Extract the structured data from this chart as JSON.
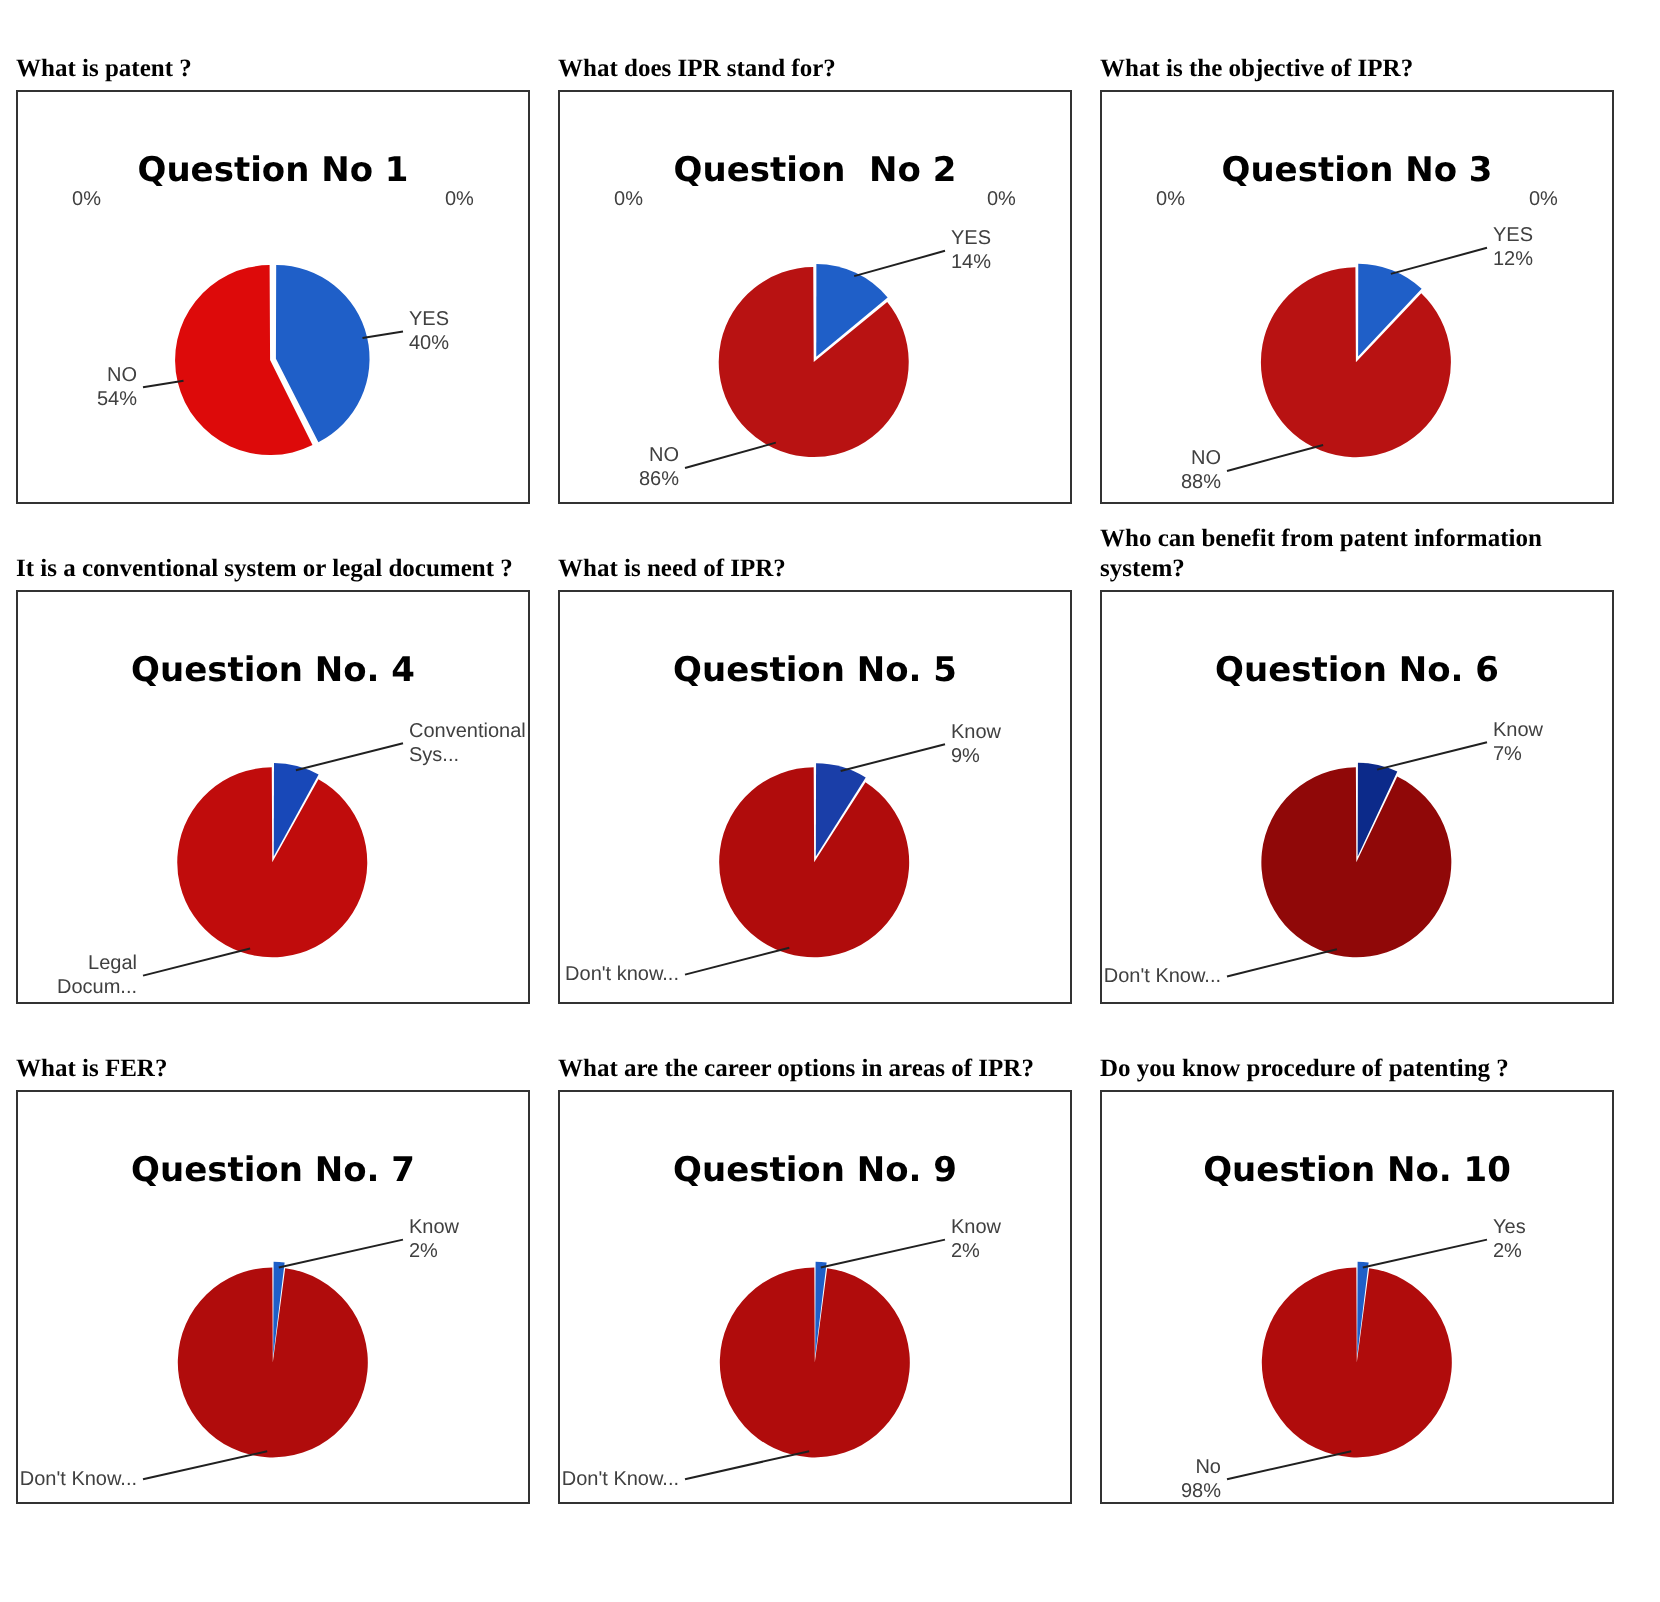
{
  "chart_data": [
    {
      "type": "pie",
      "title": "What is patent ?",
      "subtitle": "Question No 1",
      "categories": [
        null,
        "YES",
        "NO",
        null
      ],
      "values": [
        0,
        40,
        54,
        0
      ],
      "colors": [
        "#7f7f7f",
        "#1f5fc8",
        "#dd0a0a",
        "#7f7f7f"
      ],
      "value_labels": [
        "0%",
        "40%",
        "54%",
        "0%"
      ]
    },
    {
      "type": "pie",
      "title": "What does IPR stand for?",
      "subtitle": "Question  No 2",
      "categories": [
        null,
        "YES",
        "NO",
        null
      ],
      "values": [
        0,
        14,
        86,
        0
      ],
      "colors": [
        "#7f7f7f",
        "#1f5fc8",
        "#b81212",
        "#7f7f7f"
      ],
      "value_labels": [
        "0%",
        "14%",
        "86%",
        "0%"
      ]
    },
    {
      "type": "pie",
      "title": "What is the objective of IPR?",
      "subtitle": "Question No 3",
      "categories": [
        null,
        "YES",
        "NO",
        null
      ],
      "values": [
        0,
        12,
        88,
        0
      ],
      "colors": [
        "#7f7f7f",
        "#1f5fc8",
        "#b81212",
        "#7f7f7f"
      ],
      "value_labels": [
        "0%",
        "12%",
        "88%",
        "0%"
      ]
    },
    {
      "type": "pie",
      "title": "It is a conventional system or legal document ?",
      "subtitle": "Question No. 4",
      "categories": [
        "Conventional Sys...",
        "Legal Docum..."
      ],
      "values": [
        8,
        92
      ],
      "colors": [
        "#1848b8",
        "#c00c0c"
      ],
      "value_labels": [
        null,
        null
      ]
    },
    {
      "type": "pie",
      "title": "What is need of IPR?",
      "subtitle": "Question No. 5",
      "categories": [
        "Know",
        "Don't know..."
      ],
      "values": [
        9,
        91
      ],
      "colors": [
        "#1a3ea8",
        "#b00c0c"
      ],
      "value_labels": [
        "9%",
        null
      ]
    },
    {
      "type": "pie",
      "title": "Who can benefit from patent information system?",
      "subtitle": "Question No. 6",
      "categories": [
        "Know",
        "Don't Know..."
      ],
      "values": [
        7,
        93
      ],
      "colors": [
        "#0c2a8a",
        "#900808"
      ],
      "value_labels": [
        "7%",
        null
      ]
    },
    {
      "type": "pie",
      "title": "What is FER?",
      "subtitle": "Question No. 7",
      "categories": [
        "Know",
        "Don't Know..."
      ],
      "values": [
        2,
        98
      ],
      "colors": [
        "#1f5fc8",
        "#b00c0c"
      ],
      "value_labels": [
        "2%",
        null
      ]
    },
    {
      "type": "pie",
      "title": "What are the career options in areas of IPR?",
      "subtitle": "Question No. 9",
      "categories": [
        "Know",
        "Don't Know..."
      ],
      "values": [
        2,
        98
      ],
      "colors": [
        "#1f5fc8",
        "#b00c0c"
      ],
      "value_labels": [
        "2%",
        null
      ]
    },
    {
      "type": "pie",
      "title": "Do you know procedure of patenting ?",
      "subtitle": "Question No. 10",
      "categories": [
        "Yes",
        "No"
      ],
      "values": [
        2,
        98
      ],
      "colors": [
        "#1f5fc8",
        "#b00c0c"
      ],
      "value_labels": [
        "2%",
        "98%"
      ]
    }
  ]
}
